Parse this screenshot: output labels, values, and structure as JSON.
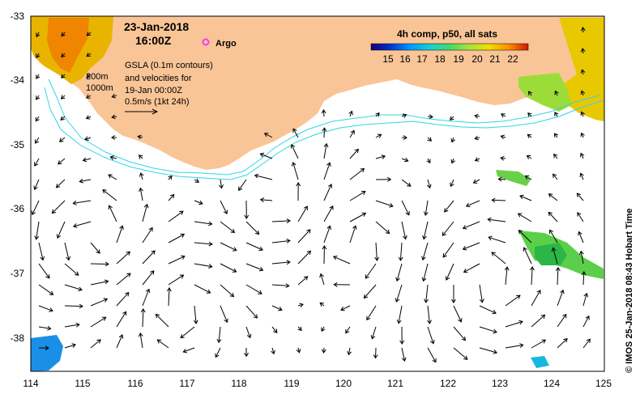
{
  "map": {
    "date_line1": "23-Jan-2018",
    "date_line2": "16:00Z",
    "argo_label": "Argo",
    "gsla_lines": [
      "GSLA (0.1m contours)",
      "and velocities for",
      "19-Jan 00:00Z",
      "0.5m/s (1kt 24h)"
    ],
    "depth_labels": [
      "200m",
      "1000m"
    ],
    "colorbar_title": "4h comp, p50, all sats",
    "colorbar_ticks": [
      "15",
      "16",
      "17",
      "18",
      "19",
      "20",
      "21",
      "22"
    ],
    "side_text": "© IMOS 25-Jan-2018 08:43 Hobart Time",
    "lon_ticks": [
      "114",
      "115",
      "116",
      "117",
      "118",
      "119",
      "120",
      "121",
      "122",
      "123",
      "124",
      "125"
    ],
    "lat_ticks": [
      "-33",
      "-34",
      "-35",
      "-36",
      "-37",
      "-38"
    ],
    "colors": {
      "land": "#f9c597",
      "bathymetry": "#2fd6e8",
      "argo": "#ff33ff",
      "sst_scale": [
        "#16006e",
        "#0033cc",
        "#0099ff",
        "#19d1d1",
        "#44d96b",
        "#a6e23c",
        "#f0e000",
        "#ff8a00",
        "#cc1a00"
      ]
    }
  }
}
